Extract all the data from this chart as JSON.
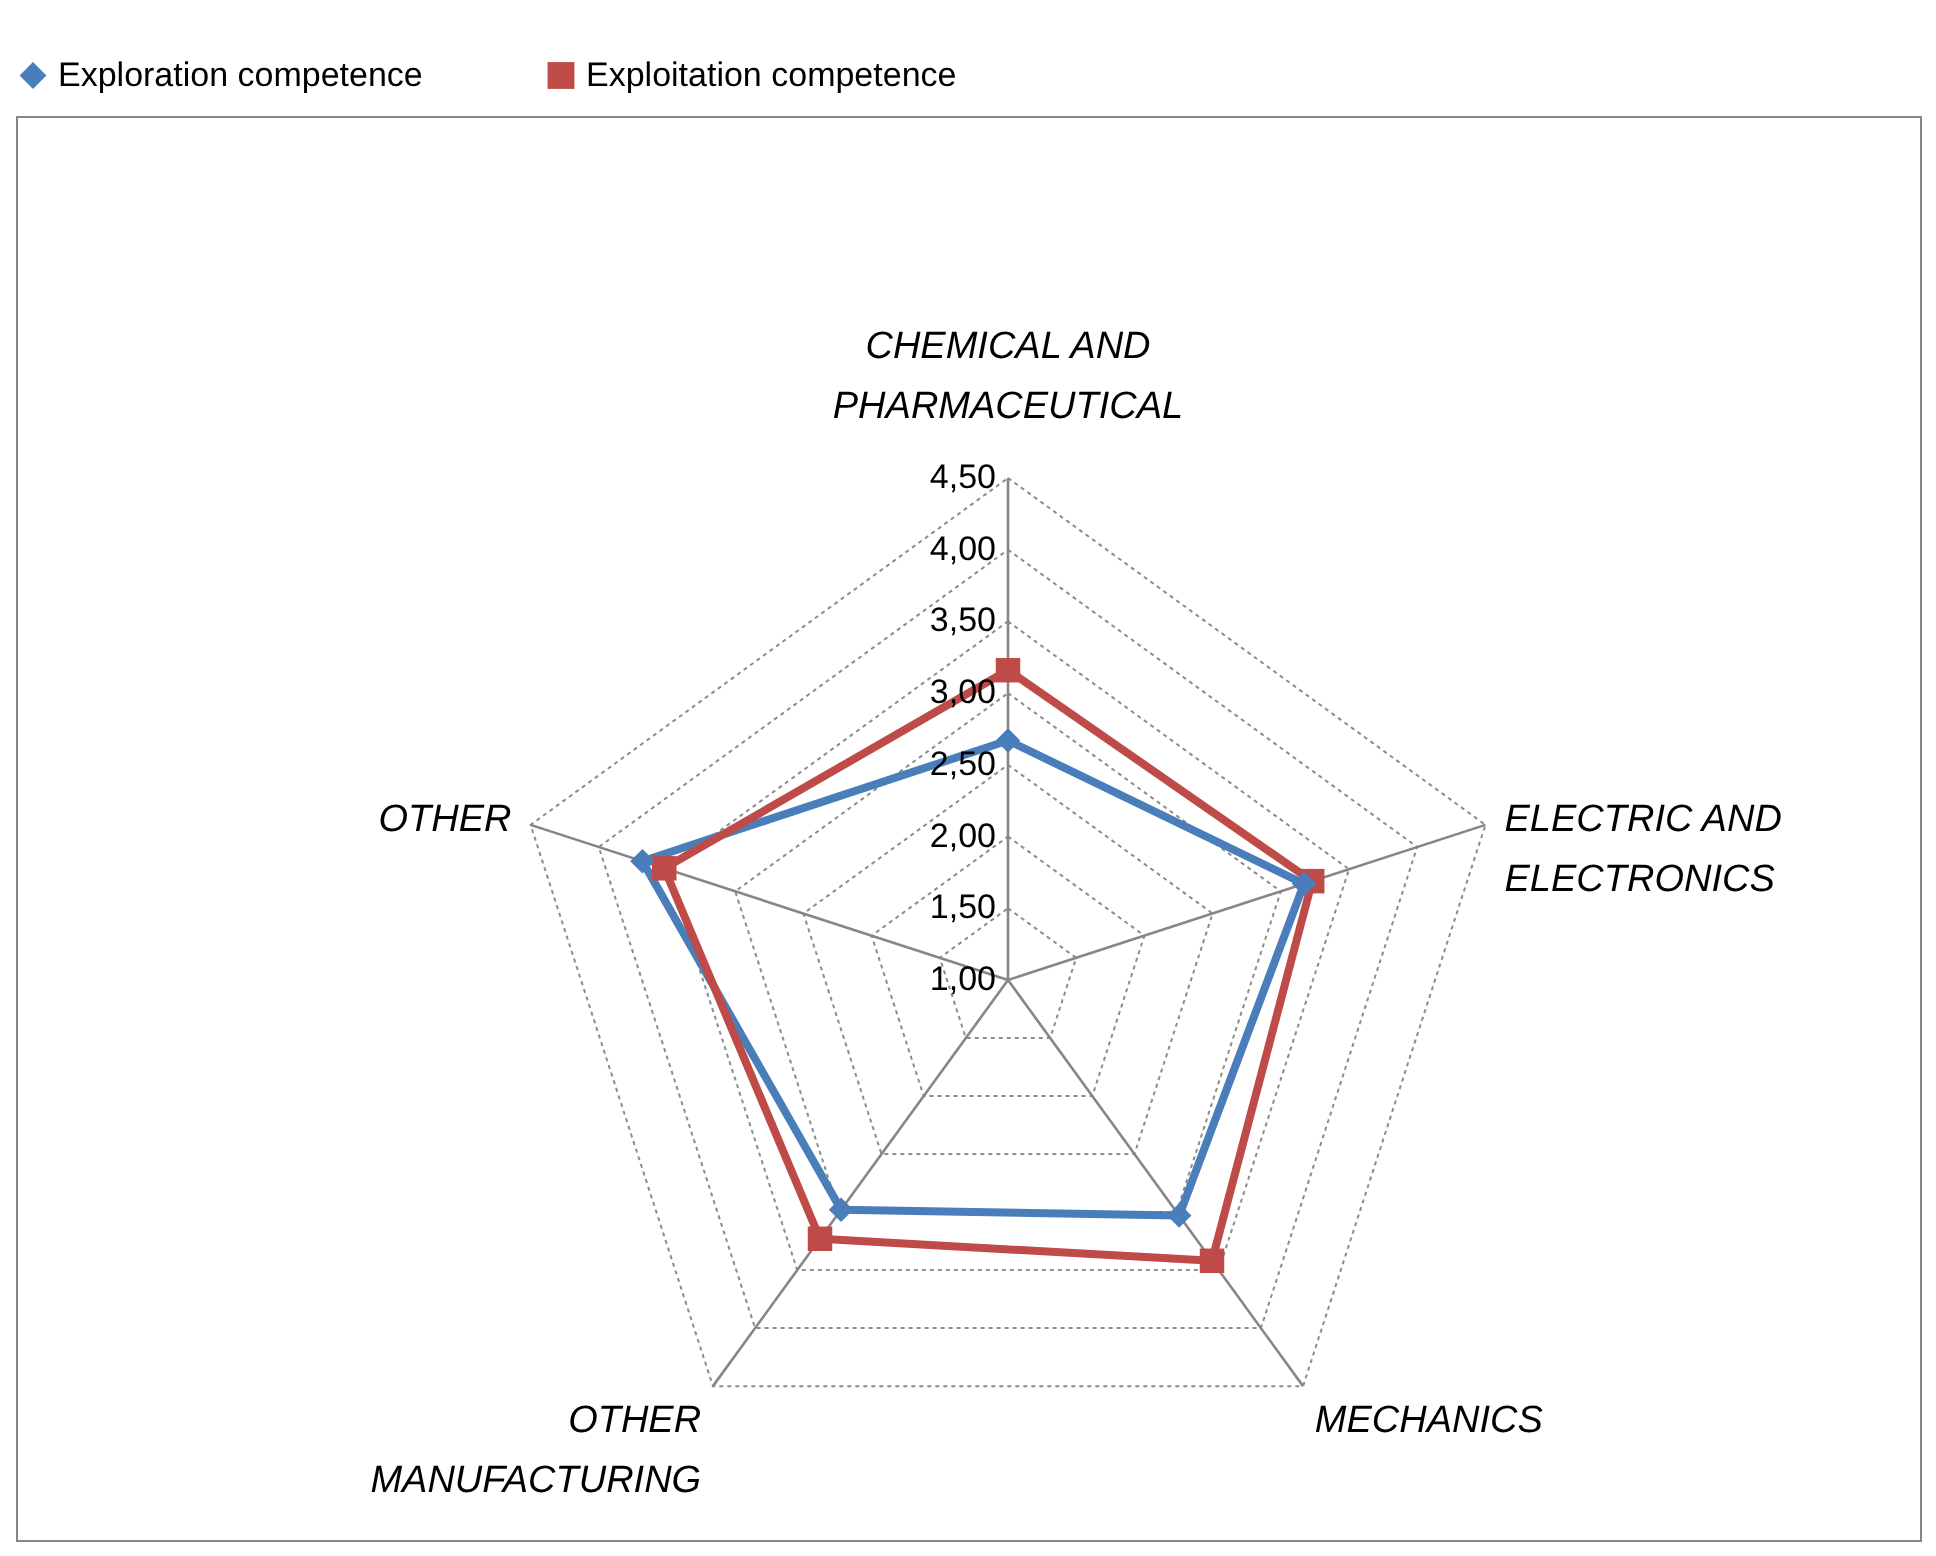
{
  "chart_data": {
    "type": "radar",
    "categories": [
      "CHEMICAL AND\nPHARMACEUTICAL",
      "ELECTRIC AND\nELECTRONICS",
      "MECHANICS",
      "OTHER\nMANUFACTURING",
      "OTHER"
    ],
    "series": [
      {
        "name": "Exploration competence",
        "color": "#4a7ebb",
        "marker": "diamond",
        "values": [
          2.67,
          3.17,
          3.03,
          2.98,
          3.68
        ]
      },
      {
        "name": "Exploitation competence",
        "color": "#be4b48",
        "marker": "square",
        "values": [
          3.16,
          3.23,
          3.42,
          3.23,
          3.52
        ]
      }
    ],
    "ylim": [
      1,
      4.5
    ],
    "yticks": [
      {
        "value": 1,
        "label": "1,00"
      },
      {
        "value": 1.5,
        "label": "1,50"
      },
      {
        "value": 2,
        "label": "2,00"
      },
      {
        "value": 2.5,
        "label": "2,50"
      },
      {
        "value": 3,
        "label": "3,00"
      },
      {
        "value": 3.5,
        "label": "3,50"
      },
      {
        "value": 4,
        "label": "4,00"
      },
      {
        "value": 4.5,
        "label": "4,50"
      }
    ],
    "grid": true,
    "legend": "top"
  }
}
